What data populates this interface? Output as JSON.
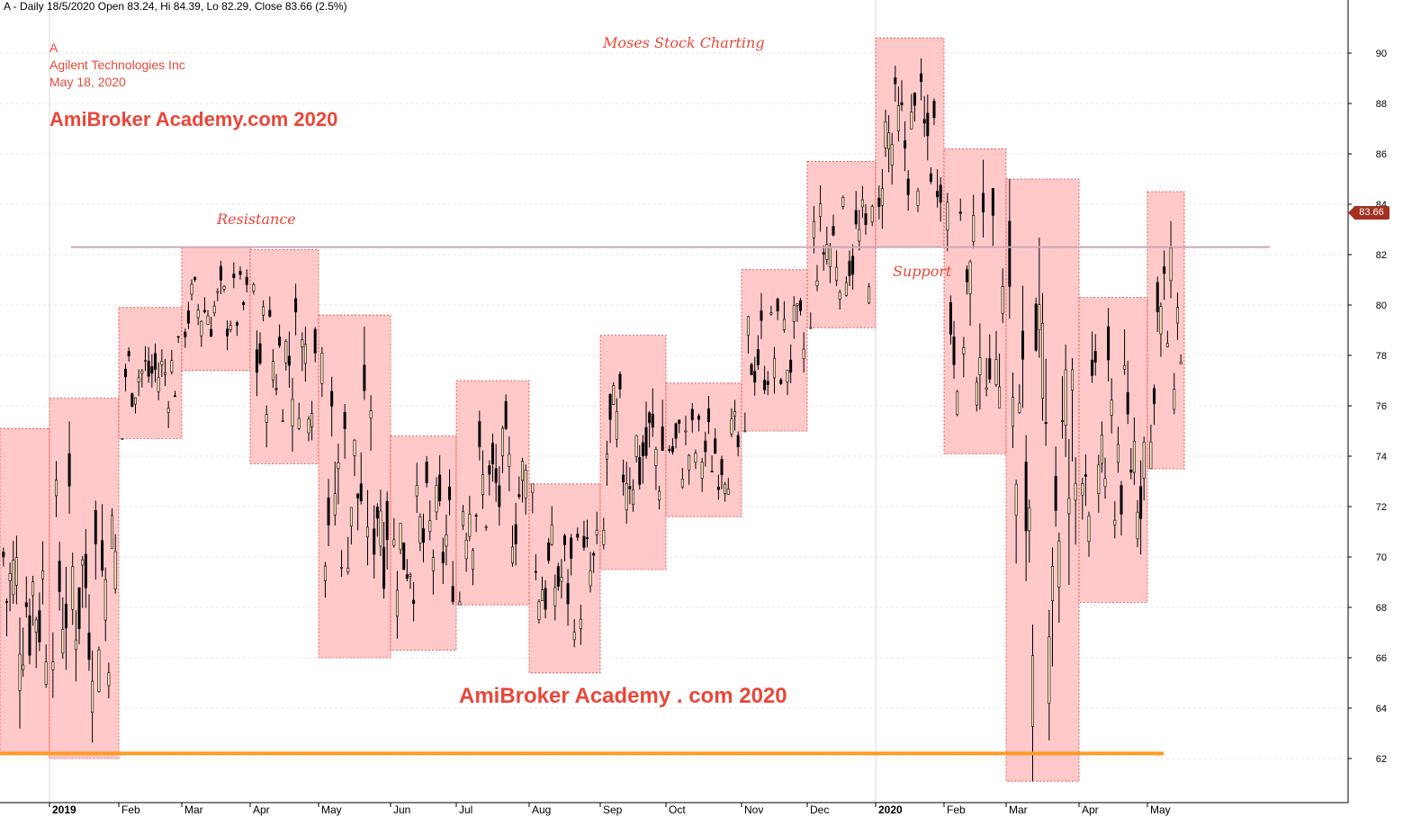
{
  "header": {
    "title_line": "A - Daily 18/5/2020 Open 83.24, Hi 84.39, Lo 82.29, Close 83.66 (2.5%)"
  },
  "annotations": {
    "symbol": "A",
    "company": "Agilent Technologies Inc",
    "date": "May 18, 2020",
    "watermark_top": "AmiBroker Academy.com  2020",
    "watermark_bottom": "AmiBroker Academy . com  2020",
    "moses": "Moses Stock Charting",
    "resistance_label": "Resistance",
    "support_label": "Support",
    "last_price": "83.66"
  },
  "colors": {
    "box_fill": "#ffc0c0",
    "box_border": "#e04040",
    "up_candle": "#ffe8c0",
    "down_candle": "#000000",
    "resistance_line": "#c8a8b8",
    "support_line": "#ff9a20",
    "text_red": "#e8473a"
  },
  "chart_data": {
    "type": "candlestick",
    "y_axis": {
      "min": 60,
      "max": 92,
      "ticks": [
        62,
        64,
        66,
        68,
        70,
        72,
        74,
        76,
        78,
        80,
        82,
        84,
        86,
        88,
        90
      ],
      "position": "right"
    },
    "x_axis": {
      "labels": [
        "2019",
        "Feb",
        "Mar",
        "Apr",
        "May",
        "Jun",
        "Jul",
        "Aug",
        "Sep",
        "Oct",
        "Nov",
        "Dec",
        "2020",
        "Feb",
        "Mar",
        "Apr",
        "May"
      ],
      "bold_labels": [
        "2019",
        "2020"
      ]
    },
    "monthly_ranges": [
      {
        "month": "Dec 2018",
        "high": 75.1,
        "low": 62.2
      },
      {
        "month": "Jan 2019",
        "high": 76.3,
        "low": 62.0
      },
      {
        "month": "Feb 2019",
        "high": 79.9,
        "low": 74.7
      },
      {
        "month": "Mar 2019",
        "high": 82.3,
        "low": 77.4
      },
      {
        "month": "Apr 2019",
        "high": 82.2,
        "low": 73.7
      },
      {
        "month": "May 2019",
        "high": 79.6,
        "low": 66.0
      },
      {
        "month": "Jun 2019",
        "high": 74.8,
        "low": 66.3
      },
      {
        "month": "Jul 2019",
        "high": 77.0,
        "low": 68.1
      },
      {
        "month": "Aug 2019",
        "high": 72.9,
        "low": 65.4
      },
      {
        "month": "Sep 2019",
        "high": 78.8,
        "low": 69.5
      },
      {
        "month": "Oct 2019",
        "high": 76.9,
        "low": 71.6
      },
      {
        "month": "Nov 2019",
        "high": 81.4,
        "low": 75.0
      },
      {
        "month": "Dec 2019",
        "high": 85.7,
        "low": 79.1
      },
      {
        "month": "Jan 2020",
        "high": 90.6,
        "low": 82.3
      },
      {
        "month": "Feb 2020",
        "high": 86.2,
        "low": 74.1
      },
      {
        "month": "Mar 2020",
        "high": 85.0,
        "low": 61.1
      },
      {
        "month": "Apr 2020",
        "high": 80.3,
        "low": 68.2
      },
      {
        "month": "May 2020",
        "high": 84.5,
        "low": 73.5
      }
    ],
    "resistance_level": 82.3,
    "support_level": 62.2,
    "last_close": 83.66,
    "grid": "horizontal"
  }
}
